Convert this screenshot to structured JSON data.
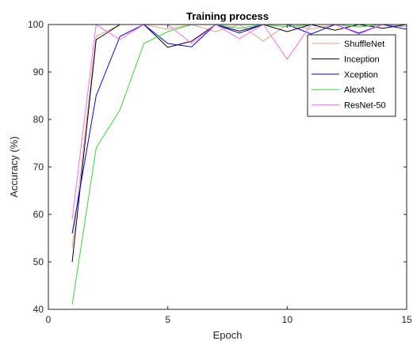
{
  "chart_data": {
    "type": "line",
    "title": "Training process",
    "xlabel": "Epoch",
    "ylabel": "Accuracy (%)",
    "xlim": [
      0,
      15
    ],
    "ylim": [
      40,
      100
    ],
    "xticks": [
      0,
      5,
      10,
      15
    ],
    "yticks": [
      40,
      50,
      60,
      70,
      80,
      90,
      100
    ],
    "xtick_labels": [
      "0",
      "5",
      "10",
      "15"
    ],
    "ytick_labels": [
      "40",
      "50",
      "60",
      "70",
      "80",
      "90",
      "100"
    ],
    "grid": false,
    "legend_position": "top-right",
    "x": [
      1,
      2,
      3,
      4,
      5,
      6,
      7,
      8,
      9,
      10,
      11,
      12,
      13,
      14,
      15
    ],
    "series": [
      {
        "name": "ShuffleNet",
        "color": "#e8a07a",
        "values": [
          53,
          97.5,
          100,
          100,
          99,
          100,
          98.5,
          100,
          96.5,
          100,
          99,
          100,
          99.5,
          100,
          99.5
        ]
      },
      {
        "name": "Inception",
        "color": "#000000",
        "values": [
          50,
          96.8,
          100,
          100,
          95.2,
          96.5,
          100,
          98.6,
          100,
          98.5,
          100,
          98.8,
          100,
          99.2,
          100
        ]
      },
      {
        "name": "Xception",
        "color": "#0000ff",
        "values": [
          56,
          85,
          97.5,
          100,
          96,
          95.3,
          100,
          98.2,
          100,
          100,
          98,
          100,
          98.2,
          100,
          99
        ]
      },
      {
        "name": "AlexNet",
        "color": "#33dd33",
        "values": [
          41,
          74,
          82,
          96,
          98.5,
          100,
          100,
          99.2,
          100,
          99.5,
          100,
          100,
          99.5,
          100,
          100
        ]
      },
      {
        "name": "ResNet-50",
        "color": "#ff66ff",
        "values": [
          59,
          100,
          96.8,
          100,
          100,
          96,
          100,
          97,
          100,
          92.7,
          100,
          100,
          98,
          100,
          100
        ]
      }
    ]
  }
}
